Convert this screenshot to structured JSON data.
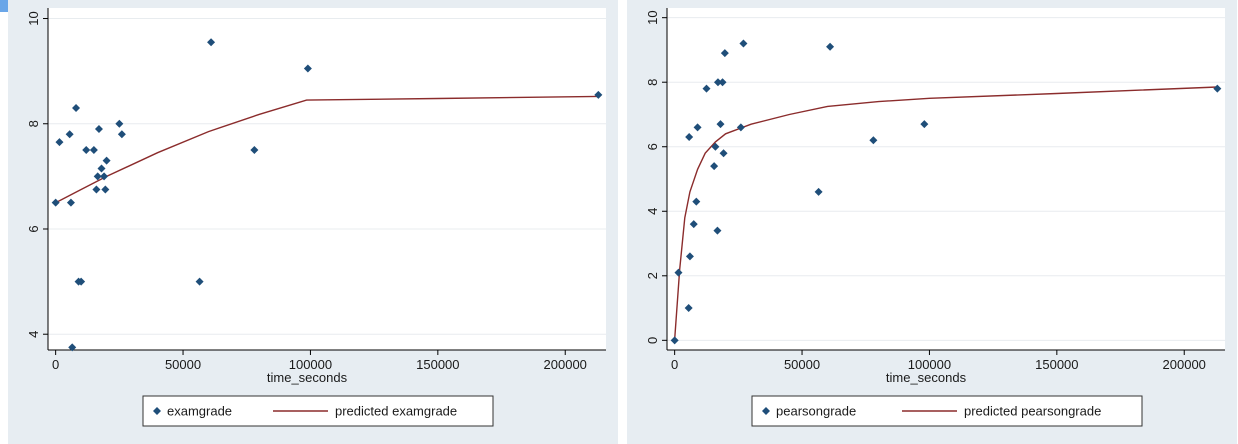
{
  "colors": {
    "panel_bg": "#e7edf2",
    "plot_bg": "#ffffff",
    "grid": "#e8ecef",
    "marker": "#1f4e79",
    "fit_line": "#8b2c2c"
  },
  "chart_data": [
    {
      "type": "scatter",
      "xlabel": "time_seconds",
      "ylabel": "",
      "xlim": [
        -3000,
        216000
      ],
      "ylim": [
        3.7,
        10.2
      ],
      "xticks": [
        0,
        50000,
        100000,
        150000,
        200000
      ],
      "xtick_labels": [
        "0",
        "50000",
        "100000",
        "150000",
        "200000"
      ],
      "yticks": [
        4,
        6,
        8,
        10
      ],
      "ytick_labels": [
        "4",
        "6",
        "8",
        "10"
      ],
      "grid": true,
      "legend_position": "bottom",
      "series": [
        {
          "name": "examgrade",
          "kind": "scatter",
          "marker": "diamond",
          "points": [
            [
              0,
              6.5
            ],
            [
              1500,
              7.65
            ],
            [
              5500,
              7.8
            ],
            [
              6000,
              6.5
            ],
            [
              6500,
              3.75
            ],
            [
              8000,
              8.3
            ],
            [
              9000,
              5.0
            ],
            [
              10000,
              5.0
            ],
            [
              12000,
              7.5
            ],
            [
              15000,
              7.5
            ],
            [
              16000,
              6.75
            ],
            [
              16500,
              7.0
            ],
            [
              17000,
              7.9
            ],
            [
              18000,
              7.15
            ],
            [
              19000,
              7.0
            ],
            [
              19500,
              6.75
            ],
            [
              20000,
              7.3
            ],
            [
              25000,
              8.0
            ],
            [
              26000,
              7.8
            ],
            [
              56500,
              5.0
            ],
            [
              61000,
              9.55
            ],
            [
              78000,
              7.5
            ],
            [
              99000,
              9.05
            ],
            [
              213000,
              8.55
            ]
          ]
        },
        {
          "name": "predicted examgrade",
          "kind": "line",
          "points": [
            [
              0,
              6.5
            ],
            [
              10000,
              6.75
            ],
            [
              20000,
              7.0
            ],
            [
              40000,
              7.45
            ],
            [
              60000,
              7.85
            ],
            [
              80000,
              8.18
            ],
            [
              98500,
              8.45
            ],
            [
              150000,
              8.48
            ],
            [
              213000,
              8.52
            ]
          ]
        }
      ]
    },
    {
      "type": "scatter",
      "xlabel": "time_seconds",
      "ylabel": "",
      "xlim": [
        -3000,
        216000
      ],
      "ylim": [
        -0.3,
        10.3
      ],
      "xticks": [
        0,
        50000,
        100000,
        150000,
        200000
      ],
      "xtick_labels": [
        "0",
        "50000",
        "100000",
        "150000",
        "200000"
      ],
      "yticks": [
        0,
        2,
        4,
        6,
        8,
        10
      ],
      "ytick_labels": [
        "0",
        "2",
        "4",
        "6",
        "8",
        "10"
      ],
      "grid": true,
      "legend_position": "bottom",
      "series": [
        {
          "name": "pearsongrade",
          "kind": "scatter",
          "marker": "diamond",
          "points": [
            [
              0,
              0.0
            ],
            [
              1500,
              2.1
            ],
            [
              5500,
              1.0
            ],
            [
              5700,
              6.3
            ],
            [
              6000,
              2.6
            ],
            [
              7500,
              3.6
            ],
            [
              8500,
              4.3
            ],
            [
              9000,
              6.6
            ],
            [
              12500,
              7.8
            ],
            [
              15500,
              5.4
            ],
            [
              16000,
              6.0
            ],
            [
              16800,
              3.4
            ],
            [
              17000,
              8.0
            ],
            [
              18000,
              6.7
            ],
            [
              18800,
              8.0
            ],
            [
              19200,
              5.8
            ],
            [
              19700,
              8.9
            ],
            [
              26000,
              6.6
            ],
            [
              27000,
              9.2
            ],
            [
              56500,
              4.6
            ],
            [
              61000,
              9.1
            ],
            [
              78000,
              6.2
            ],
            [
              98000,
              6.7
            ],
            [
              213000,
              7.8
            ]
          ]
        },
        {
          "name": "predicted pearsongrade",
          "kind": "line",
          "points": [
            [
              0,
              0.0
            ],
            [
              2000,
              2.2
            ],
            [
              4000,
              3.8
            ],
            [
              6000,
              4.6
            ],
            [
              9000,
              5.3
            ],
            [
              12000,
              5.8
            ],
            [
              16000,
              6.15
            ],
            [
              20000,
              6.4
            ],
            [
              30000,
              6.7
            ],
            [
              45000,
              7.0
            ],
            [
              60000,
              7.25
            ],
            [
              80000,
              7.4
            ],
            [
              100000,
              7.5
            ],
            [
              150000,
              7.65
            ],
            [
              213000,
              7.85
            ]
          ]
        }
      ]
    }
  ]
}
